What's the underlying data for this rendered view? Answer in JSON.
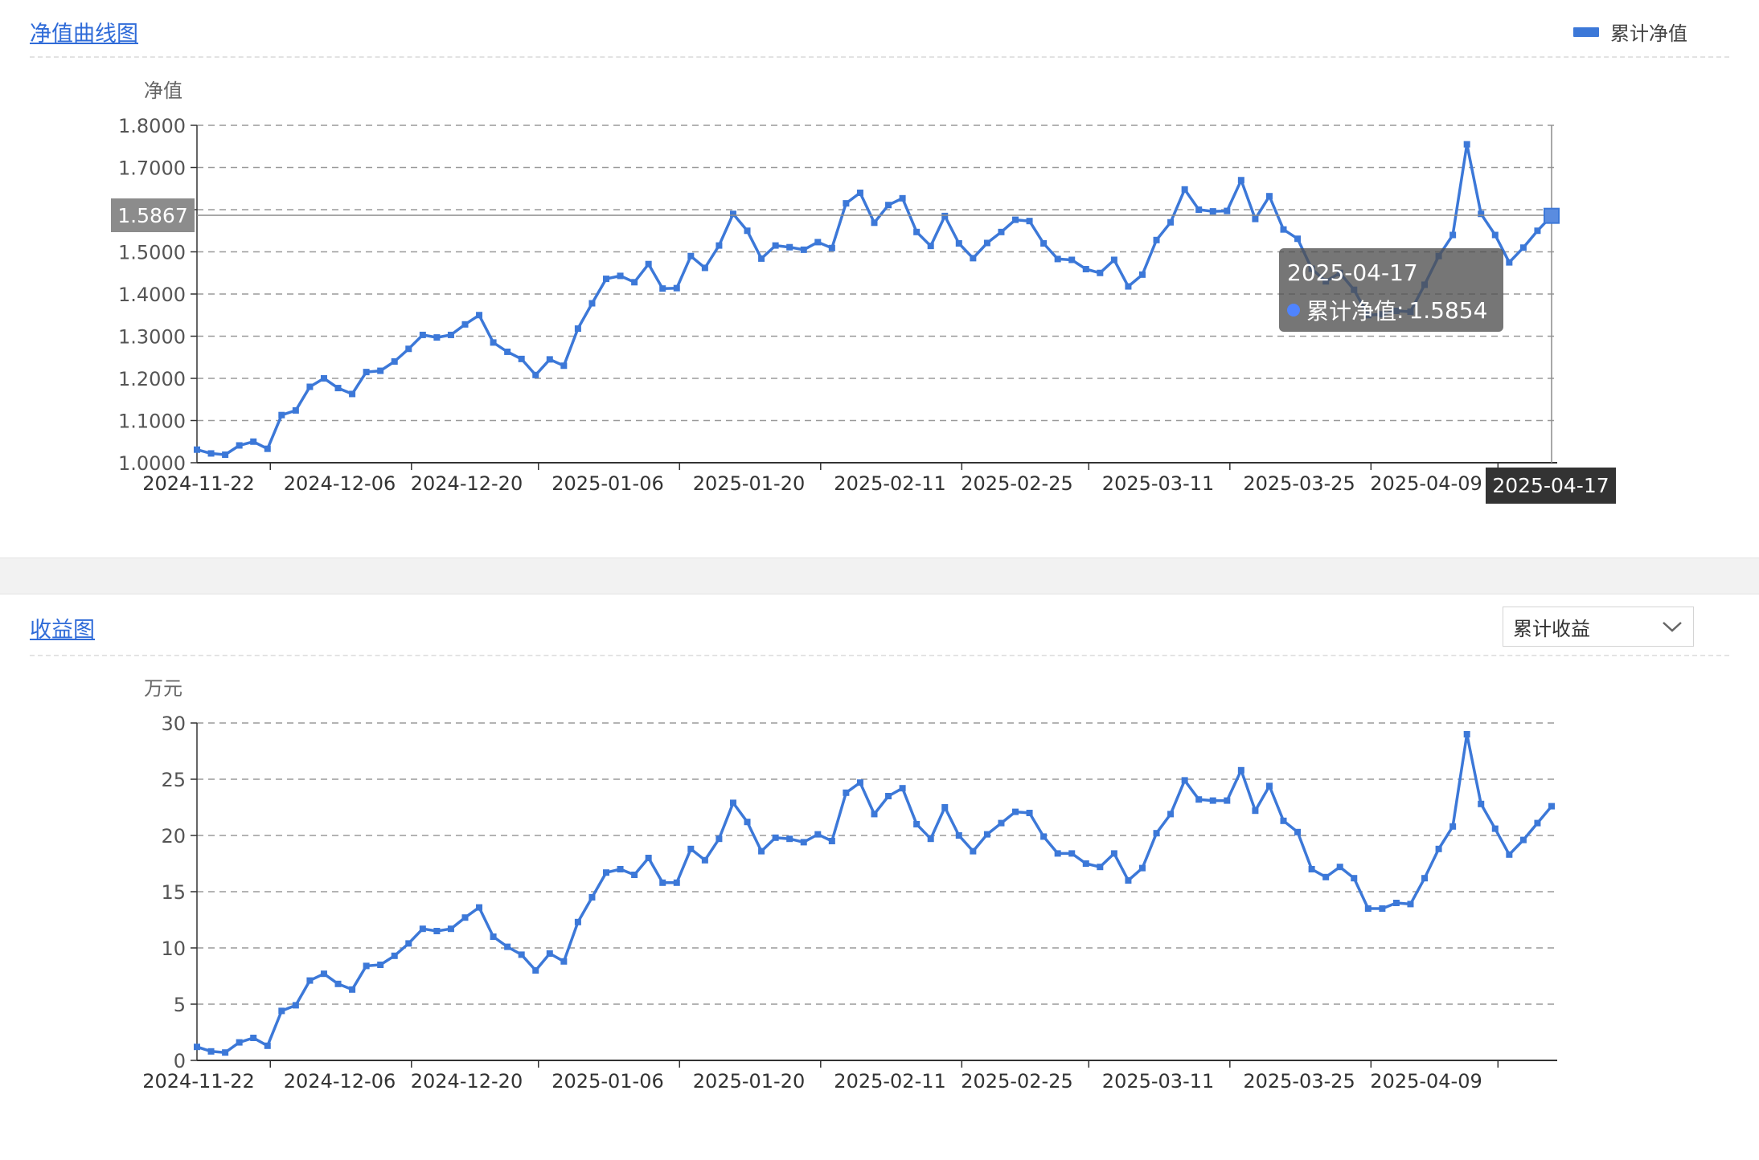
{
  "nav_panel": {
    "title": "净值曲线图",
    "legend_label": "累计净值",
    "pointer_y_label": "1.5867",
    "pointer_x_label": "2025-04-17",
    "tooltip": {
      "date": "2025-04-17",
      "series": "累计净值",
      "sep": ":",
      "value": "1.5854"
    }
  },
  "profit_panel": {
    "title": "收益图",
    "select_value": "累计收益"
  },
  "colors": {
    "line": "#3c78d8",
    "title": "#2f6bd8",
    "grid": "#999999"
  },
  "chart_data": [
    {
      "type": "line",
      "ylabel": "净值",
      "ylim": [
        1.0,
        1.8
      ],
      "y_ticks": [
        "1.0000",
        "1.1000",
        "1.2000",
        "1.3000",
        "1.4000",
        "1.5000",
        "1.6000",
        "1.7000",
        "1.8000"
      ],
      "x_tick_labels": [
        "2024-11-22",
        "2024-12-06",
        "2024-12-20",
        "2025-01-06",
        "2025-01-20",
        "2025-02-11",
        "2025-02-25",
        "2025-03-11",
        "2025-03-25",
        "2025-04-09"
      ],
      "grid": true,
      "legend": "top-right",
      "series": [
        {
          "name": "累计净值",
          "values": [
            1.031,
            1.022,
            1.019,
            1.041,
            1.05,
            1.033,
            1.113,
            1.124,
            1.18,
            1.2,
            1.177,
            1.163,
            1.215,
            1.218,
            1.24,
            1.27,
            1.303,
            1.297,
            1.303,
            1.328,
            1.35,
            1.285,
            1.263,
            1.246,
            1.208,
            1.245,
            1.23,
            1.318,
            1.378,
            1.436,
            1.443,
            1.428,
            1.471,
            1.413,
            1.414,
            1.49,
            1.462,
            1.515,
            1.59,
            1.55,
            1.484,
            1.515,
            1.511,
            1.505,
            1.523,
            1.509,
            1.615,
            1.64,
            1.569,
            1.611,
            1.627,
            1.547,
            1.514,
            1.585,
            1.52,
            1.485,
            1.521,
            1.547,
            1.576,
            1.573,
            1.52,
            1.483,
            1.481,
            1.459,
            1.45,
            1.481,
            1.418,
            1.446,
            1.528,
            1.57,
            1.648,
            1.6,
            1.596,
            1.597,
            1.67,
            1.578,
            1.632,
            1.553,
            1.531,
            1.46,
            1.43,
            1.45,
            1.41,
            1.35,
            1.352,
            1.36,
            1.358,
            1.422,
            1.49,
            1.54,
            1.755,
            1.59,
            1.54,
            1.475,
            1.51,
            1.55,
            1.5854
          ]
        }
      ]
    },
    {
      "type": "line",
      "ylabel": "万元",
      "ylim": [
        0,
        30
      ],
      "y_ticks": [
        "0",
        "5",
        "10",
        "15",
        "20",
        "25",
        "30"
      ],
      "x_tick_labels": [
        "2024-11-22",
        "2024-12-06",
        "2024-12-20",
        "2025-01-06",
        "2025-01-20",
        "2025-02-11",
        "2025-02-25",
        "2025-03-11",
        "2025-03-25",
        "2025-04-09"
      ],
      "grid": true,
      "legend": "none",
      "series": [
        {
          "name": "累计收益",
          "values": [
            1.2,
            0.8,
            0.7,
            1.6,
            2.0,
            1.3,
            4.4,
            4.9,
            7.1,
            7.7,
            6.8,
            6.3,
            8.4,
            8.5,
            9.3,
            10.4,
            11.7,
            11.5,
            11.7,
            12.7,
            13.6,
            11.0,
            10.1,
            9.4,
            8.0,
            9.5,
            8.8,
            12.3,
            14.5,
            16.7,
            17.0,
            16.5,
            18.0,
            15.8,
            15.8,
            18.8,
            17.8,
            19.7,
            22.9,
            21.2,
            18.6,
            19.8,
            19.7,
            19.4,
            20.1,
            19.5,
            23.8,
            24.7,
            21.9,
            23.5,
            24.2,
            21.0,
            19.7,
            22.5,
            20.0,
            18.6,
            20.1,
            21.1,
            22.1,
            22.0,
            19.9,
            18.4,
            18.4,
            17.5,
            17.2,
            18.4,
            16.0,
            17.1,
            20.2,
            21.9,
            24.9,
            23.2,
            23.1,
            23.1,
            25.8,
            22.2,
            24.4,
            21.3,
            20.3,
            17.0,
            16.3,
            17.2,
            16.2,
            13.5,
            13.5,
            14.0,
            13.9,
            16.2,
            18.8,
            20.8,
            29.0,
            22.8,
            20.6,
            18.3,
            19.6,
            21.1,
            22.6
          ]
        }
      ]
    }
  ]
}
